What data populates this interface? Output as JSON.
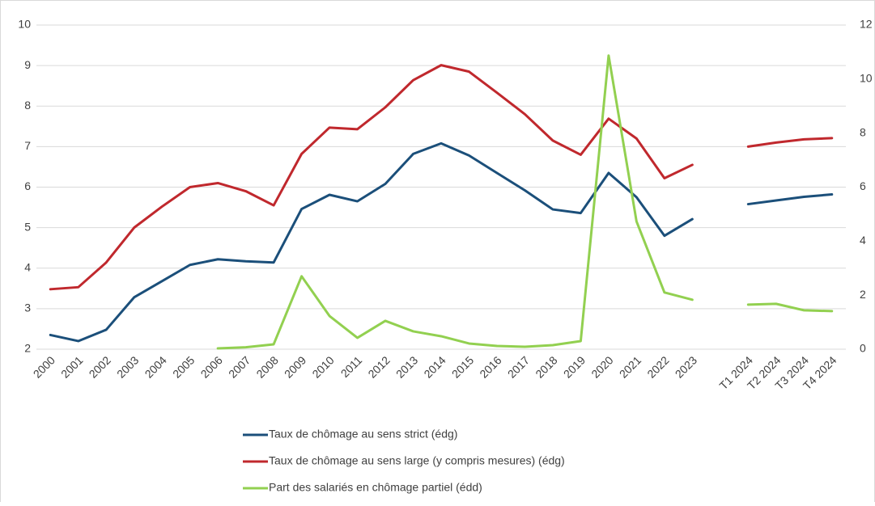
{
  "chart_data": {
    "type": "line",
    "categories": [
      "2000",
      "2001",
      "2002",
      "2003",
      "2004",
      "2005",
      "2006",
      "2007",
      "2008",
      "2009",
      "2010",
      "2011",
      "2012",
      "2013",
      "2014",
      "2015",
      "2016",
      "2017",
      "2018",
      "2019",
      "2020",
      "2021",
      "2022",
      "2023",
      null,
      "T1 2024",
      "T2 2024",
      "T3 2024",
      "T4 2024"
    ],
    "series": [
      {
        "name": "Taux de chômage au sens strict (édg)",
        "color": "#1b4f7a",
        "axis": "y",
        "values": [
          2.35,
          2.2,
          2.48,
          3.28,
          3.68,
          4.08,
          4.22,
          4.17,
          4.14,
          5.46,
          5.81,
          5.65,
          6.08,
          6.82,
          7.08,
          6.78,
          6.35,
          5.92,
          5.45,
          5.36,
          6.35,
          5.75,
          4.8,
          5.21,
          null,
          5.58,
          5.67,
          5.76,
          5.82
        ]
      },
      {
        "name": "Taux de chômage au sens large (y compris mesures) (édg)",
        "color": "#c0282d",
        "axis": "y",
        "values": [
          3.48,
          3.53,
          4.14,
          5.0,
          5.52,
          6.0,
          6.1,
          5.9,
          5.55,
          6.82,
          7.47,
          7.43,
          7.97,
          8.64,
          9.01,
          8.85,
          8.33,
          7.8,
          7.15,
          6.8,
          7.69,
          7.2,
          6.22,
          6.55,
          null,
          7.0,
          7.1,
          7.18,
          7.21
        ]
      },
      {
        "name": "Part des salariés en chômage partiel (édd)",
        "color": "#92d050",
        "axis": "y2",
        "values": [
          null,
          null,
          null,
          null,
          null,
          null,
          0.03,
          0.07,
          0.18,
          2.7,
          1.23,
          0.42,
          1.05,
          0.66,
          0.48,
          0.21,
          0.12,
          0.09,
          0.15,
          0.3,
          10.87,
          4.73,
          2.1,
          1.83,
          null,
          1.65,
          1.68,
          1.44,
          1.41
        ]
      }
    ],
    "ylim": [
      2,
      10
    ],
    "yticks": [
      2,
      3,
      4,
      5,
      6,
      7,
      8,
      9,
      10
    ],
    "y2lim": [
      0,
      12
    ],
    "y2ticks": [
      0,
      2,
      4,
      6,
      8,
      10,
      12
    ],
    "grid": true,
    "legend": "bottom"
  }
}
